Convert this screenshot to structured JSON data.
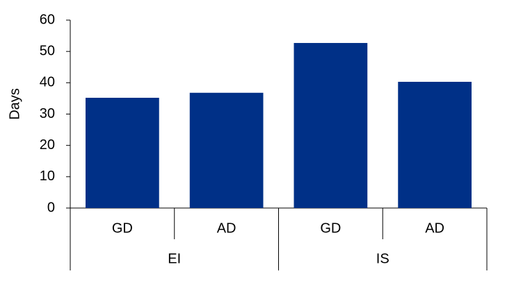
{
  "chart_data": {
    "type": "bar",
    "y_label": "Days",
    "categories": [
      "GD",
      "AD",
      "GD",
      "AD"
    ],
    "category_groups": [
      "EI",
      "IS"
    ],
    "values": [
      35.2,
      36.8,
      52.7,
      40.3
    ],
    "color": "#003087",
    "ylim": [
      0,
      60
    ],
    "yticks": [
      0,
      10,
      20,
      30,
      40,
      50,
      60
    ],
    "grid": false
  }
}
